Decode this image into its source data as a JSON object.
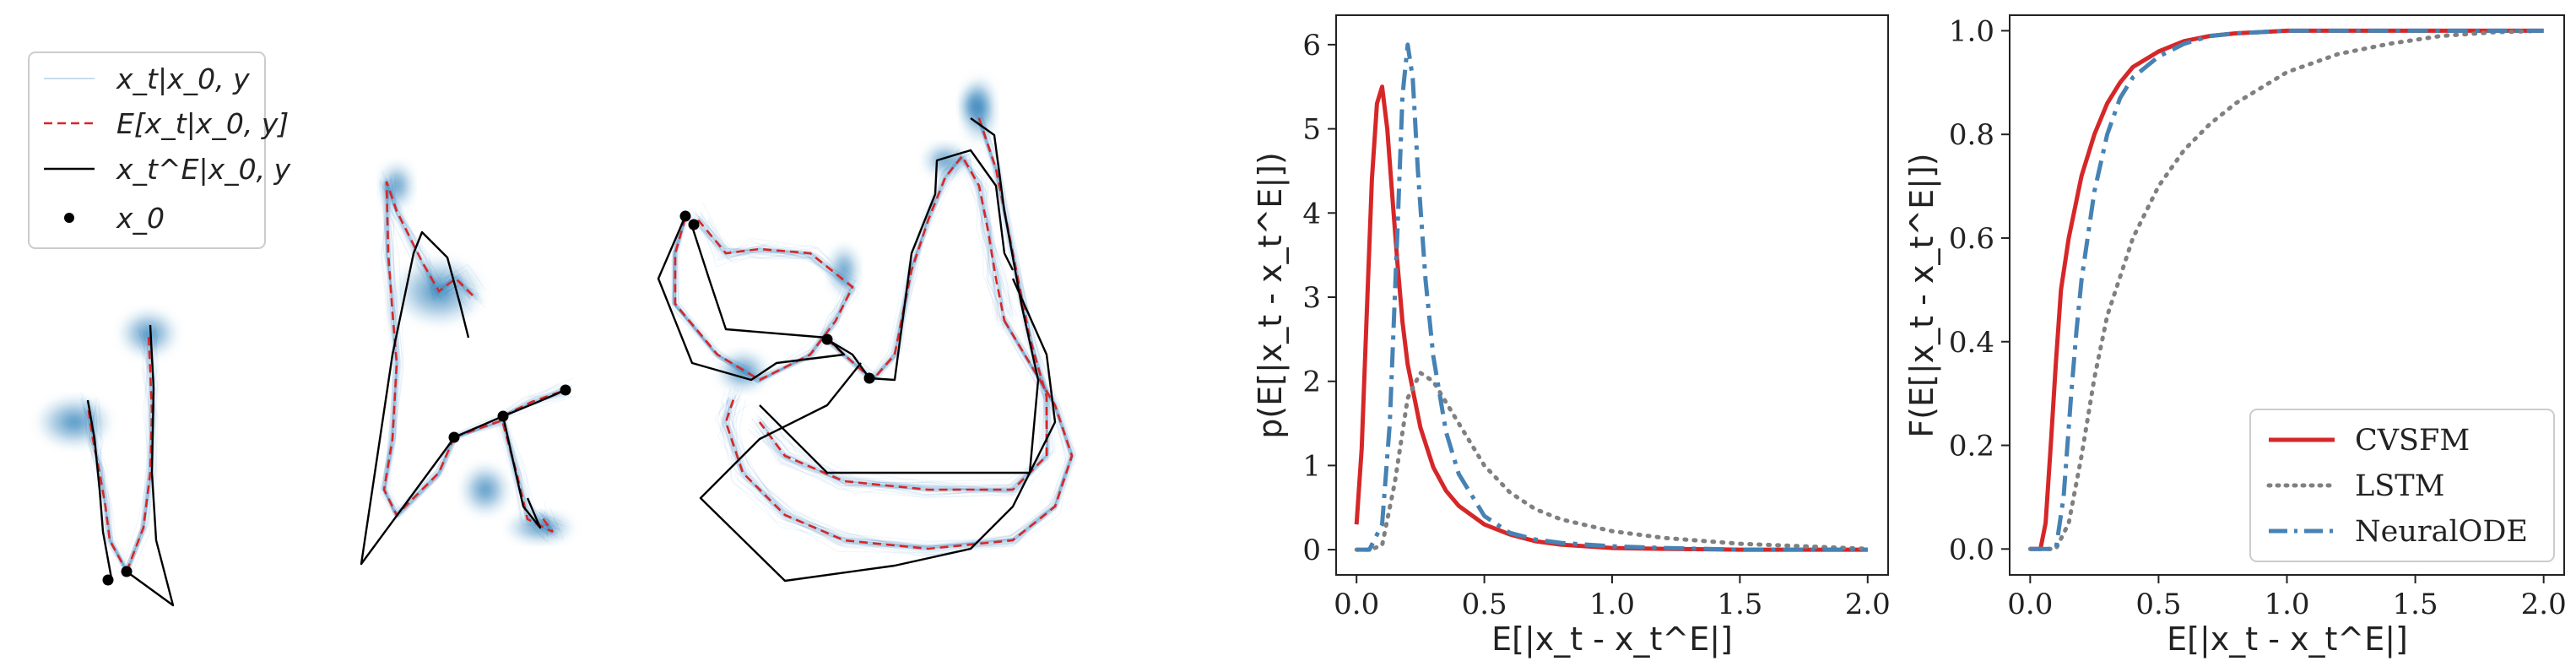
{
  "chart_data": [
    {
      "type": "trajectory",
      "panel": "sample-trajectories",
      "legend": [
        {
          "label": "x_t|x_0, y",
          "style": "thin-blue",
          "color": "#1f77b4"
        },
        {
          "label": "E[x_t|x_0, y]",
          "style": "dashed",
          "color": "#d62728"
        },
        {
          "label": "x_t^E|x_0, y",
          "style": "solid",
          "color": "#000000"
        },
        {
          "label": "x_0",
          "style": "dot",
          "color": "#000000"
        }
      ],
      "legend_placement": "top-left"
    },
    {
      "type": "line",
      "panel": "density",
      "xlabel": "E[|x_t - x_t^E|]",
      "ylabel": "p(E[|x_t - x_t^E|])",
      "xlim": [
        -0.08,
        2.08
      ],
      "ylim": [
        -0.3,
        6.35
      ],
      "xticks": [
        "0.0",
        "0.5",
        "1.0",
        "1.5",
        "2.0"
      ],
      "yticks": [
        "0",
        "1",
        "2",
        "3",
        "4",
        "5",
        "6"
      ],
      "series": [
        {
          "name": "CVSFM",
          "color": "#d62728",
          "style": "solid",
          "x": [
            0.0,
            0.02,
            0.04,
            0.06,
            0.08,
            0.1,
            0.12,
            0.14,
            0.16,
            0.18,
            0.2,
            0.25,
            0.3,
            0.35,
            0.4,
            0.5,
            0.6,
            0.7,
            0.8,
            1.0,
            1.2,
            1.5,
            2.0
          ],
          "y": [
            0.3,
            1.2,
            2.8,
            4.4,
            5.3,
            5.5,
            5.0,
            4.2,
            3.4,
            2.7,
            2.2,
            1.45,
            0.98,
            0.7,
            0.52,
            0.3,
            0.18,
            0.1,
            0.06,
            0.02,
            0.01,
            0.0,
            0.0
          ]
        },
        {
          "name": "LSTM",
          "color": "#808080",
          "style": "dotted",
          "x": [
            0.0,
            0.05,
            0.1,
            0.15,
            0.2,
            0.25,
            0.3,
            0.4,
            0.5,
            0.6,
            0.7,
            0.8,
            1.0,
            1.2,
            1.5,
            2.0
          ],
          "y": [
            0.0,
            0.0,
            0.05,
            0.8,
            1.8,
            2.1,
            2.0,
            1.5,
            1.0,
            0.68,
            0.48,
            0.36,
            0.22,
            0.14,
            0.07,
            0.01
          ]
        },
        {
          "name": "NeuralODE",
          "color": "#4682b4",
          "style": "dashdot",
          "x": [
            0.0,
            0.05,
            0.1,
            0.13,
            0.16,
            0.18,
            0.2,
            0.22,
            0.24,
            0.27,
            0.3,
            0.35,
            0.4,
            0.5,
            0.6,
            0.7,
            0.8,
            1.0,
            1.2,
            1.5,
            2.0
          ],
          "y": [
            0.0,
            0.0,
            0.3,
            1.5,
            3.8,
            5.4,
            6.0,
            5.6,
            4.5,
            3.2,
            2.3,
            1.4,
            0.9,
            0.4,
            0.2,
            0.12,
            0.08,
            0.04,
            0.02,
            0.0,
            0.0
          ]
        }
      ]
    },
    {
      "type": "line",
      "panel": "cdf",
      "xlabel": "E[|x_t - x_t^E|]",
      "ylabel": "F(E[|x_t - x_t^E|])",
      "xlim": [
        -0.08,
        2.08
      ],
      "ylim": [
        -0.05,
        1.03
      ],
      "xticks": [
        "0.0",
        "0.5",
        "1.0",
        "1.5",
        "2.0"
      ],
      "yticks": [
        "0.0",
        "0.2",
        "0.4",
        "0.6",
        "0.8",
        "1.0"
      ],
      "legend_placement": "bottom-right",
      "series": [
        {
          "name": "CVSFM",
          "color": "#d62728",
          "style": "solid",
          "x": [
            0.0,
            0.04,
            0.06,
            0.08,
            0.1,
            0.12,
            0.15,
            0.2,
            0.25,
            0.3,
            0.35,
            0.4,
            0.5,
            0.6,
            0.7,
            0.8,
            1.0,
            1.2,
            1.5,
            2.0
          ],
          "y": [
            0.0,
            0.0,
            0.05,
            0.2,
            0.36,
            0.5,
            0.6,
            0.72,
            0.8,
            0.86,
            0.9,
            0.93,
            0.96,
            0.98,
            0.99,
            0.995,
            1.0,
            1.0,
            1.0,
            1.0
          ]
        },
        {
          "name": "LSTM",
          "color": "#808080",
          "style": "dotted",
          "x": [
            0.0,
            0.1,
            0.15,
            0.2,
            0.25,
            0.3,
            0.4,
            0.5,
            0.6,
            0.7,
            0.8,
            1.0,
            1.2,
            1.4,
            1.6,
            1.8,
            2.0
          ],
          "y": [
            0.0,
            0.0,
            0.05,
            0.18,
            0.33,
            0.45,
            0.6,
            0.7,
            0.77,
            0.82,
            0.86,
            0.92,
            0.955,
            0.975,
            0.99,
            0.997,
            1.0
          ]
        },
        {
          "name": "NeuralODE",
          "color": "#4682b4",
          "style": "dashdot",
          "x": [
            0.0,
            0.1,
            0.13,
            0.16,
            0.18,
            0.2,
            0.25,
            0.3,
            0.35,
            0.4,
            0.5,
            0.6,
            0.7,
            0.8,
            1.0,
            1.2,
            2.0
          ],
          "y": [
            0.0,
            0.0,
            0.1,
            0.3,
            0.42,
            0.52,
            0.69,
            0.8,
            0.87,
            0.91,
            0.95,
            0.975,
            0.99,
            0.995,
            1.0,
            1.0,
            1.0
          ]
        }
      ]
    }
  ],
  "legends": {
    "cdf": [
      "CVSFM",
      "LSTM",
      "NeuralODE"
    ]
  }
}
